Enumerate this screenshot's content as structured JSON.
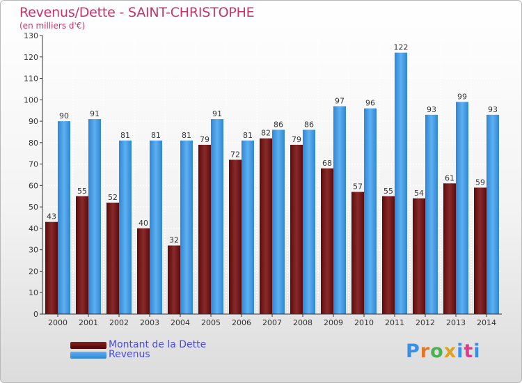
{
  "header": {
    "title": "Revenus/Dette - SAINT-CHRISTOPHE",
    "subtitle": "(en milliers d'€)"
  },
  "logo": {
    "text": "Proxiti"
  },
  "colors": {
    "dette": "#7a1a1a",
    "revenus": "#3d9ae8",
    "title": "#c8336a",
    "legend_text": "#4a4ae0"
  },
  "legend": [
    {
      "label": "Montant de la Dette",
      "color": "#6b1111"
    },
    {
      "label": "Revenus",
      "color": "#3d9ae8"
    }
  ],
  "chart_data": {
    "type": "bar",
    "title": "Revenus/Dette - SAINT-CHRISTOPHE",
    "subtitle": "(en milliers d'€)",
    "categories": [
      "2000",
      "2001",
      "2002",
      "2003",
      "2004",
      "2005",
      "2006",
      "2007",
      "2008",
      "2009",
      "2010",
      "2011",
      "2012",
      "2013",
      "2014"
    ],
    "series": [
      {
        "name": "Montant de la Dette",
        "values": [
          43,
          55,
          52,
          40,
          32,
          79,
          72,
          82,
          79,
          68,
          57,
          55,
          54,
          61,
          59
        ]
      },
      {
        "name": "Revenus",
        "values": [
          90,
          91,
          81,
          81,
          81,
          91,
          81,
          86,
          86,
          97,
          96,
          122,
          93,
          99,
          93
        ]
      }
    ],
    "ylim": [
      0,
      130
    ],
    "yticks": [
      0,
      10,
      20,
      30,
      40,
      50,
      60,
      70,
      80,
      90,
      100,
      110,
      120,
      130
    ],
    "grid": true,
    "legend_position": "bottom-left"
  }
}
